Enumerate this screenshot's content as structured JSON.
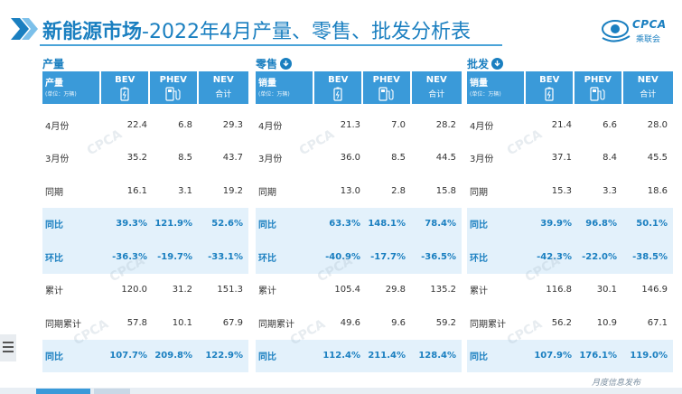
{
  "title": {
    "bold": "新能源市场",
    "rest": "-2022年4月产量、零售、批发分析表"
  },
  "logo": {
    "text": "CPCA",
    "sub": "乘联会"
  },
  "footer": "月度信息发布",
  "headers": {
    "bev": "BEV",
    "phev": "PHEV",
    "nev": "NEV",
    "nev_sub": "合计",
    "unit": "(单位：万辆)"
  },
  "panels": [
    {
      "label": "产量",
      "header_label": "产量",
      "icon": "none",
      "rows": [
        {
          "label": "4月份",
          "bev": "22.4",
          "phev": "6.8",
          "nev": "29.3",
          "hl": false
        },
        {
          "label": "3月份",
          "bev": "35.2",
          "phev": "8.5",
          "nev": "43.7",
          "hl": false
        },
        {
          "label": "同期",
          "bev": "16.1",
          "phev": "3.1",
          "nev": "19.2",
          "hl": false
        },
        {
          "label": "同比",
          "bev": "39.3%",
          "phev": "121.9%",
          "nev": "52.6%",
          "hl": true
        },
        {
          "label": "环比",
          "bev": "-36.3%",
          "phev": "-19.7%",
          "nev": "-33.1%",
          "hl": true
        },
        {
          "label": "累计",
          "bev": "120.0",
          "phev": "31.2",
          "nev": "151.3",
          "hl": false
        },
        {
          "label": "同期累计",
          "bev": "57.8",
          "phev": "10.1",
          "nev": "67.9",
          "hl": false
        },
        {
          "label": "同比",
          "bev": "107.7%",
          "phev": "209.8%",
          "nev": "122.9%",
          "hl": true
        }
      ]
    },
    {
      "label": "零售",
      "header_label": "销量",
      "icon": "download-icon",
      "rows": [
        {
          "label": "4月份",
          "bev": "21.3",
          "phev": "7.0",
          "nev": "28.2",
          "hl": false
        },
        {
          "label": "3月份",
          "bev": "36.0",
          "phev": "8.5",
          "nev": "44.5",
          "hl": false
        },
        {
          "label": "同期",
          "bev": "13.0",
          "phev": "2.8",
          "nev": "15.8",
          "hl": false
        },
        {
          "label": "同比",
          "bev": "63.3%",
          "phev": "148.1%",
          "nev": "78.4%",
          "hl": true
        },
        {
          "label": "环比",
          "bev": "-40.9%",
          "phev": "-17.7%",
          "nev": "-36.5%",
          "hl": true
        },
        {
          "label": "累计",
          "bev": "105.4",
          "phev": "29.8",
          "nev": "135.2",
          "hl": false
        },
        {
          "label": "同期累计",
          "bev": "49.6",
          "phev": "9.6",
          "nev": "59.2",
          "hl": false
        },
        {
          "label": "同比",
          "bev": "112.4%",
          "phev": "211.4%",
          "nev": "128.4%",
          "hl": true
        }
      ]
    },
    {
      "label": "批发",
      "header_label": "销量",
      "icon": "download-icon",
      "rows": [
        {
          "label": "4月份",
          "bev": "21.4",
          "phev": "6.6",
          "nev": "28.0",
          "hl": false
        },
        {
          "label": "3月份",
          "bev": "37.1",
          "phev": "8.4",
          "nev": "45.5",
          "hl": false
        },
        {
          "label": "同期",
          "bev": "15.3",
          "phev": "3.3",
          "nev": "18.6",
          "hl": false
        },
        {
          "label": "同比",
          "bev": "39.9%",
          "phev": "96.8%",
          "nev": "50.1%",
          "hl": true
        },
        {
          "label": "环比",
          "bev": "-42.3%",
          "phev": "-22.0%",
          "nev": "-38.5%",
          "hl": true
        },
        {
          "label": "累计",
          "bev": "116.8",
          "phev": "30.1",
          "nev": "146.9",
          "hl": false
        },
        {
          "label": "同期累计",
          "bev": "56.2",
          "phev": "10.9",
          "nev": "67.1",
          "hl": false
        },
        {
          "label": "同比",
          "bev": "107.9%",
          "phev": "176.1%",
          "nev": "119.0%",
          "hl": true
        }
      ]
    }
  ],
  "colors": {
    "accent": "#1a7fc0",
    "header_bg": "#3a9ad9",
    "highlight_bg": "#e3f1fb"
  }
}
